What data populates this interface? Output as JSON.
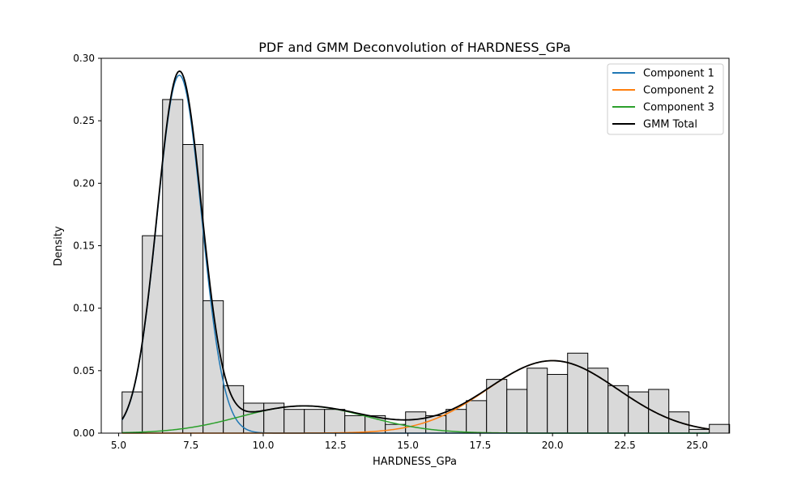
{
  "chart_data": {
    "type": "bar",
    "title": "PDF and GMM Deconvolution of HARDNESS_GPa",
    "xlabel": "HARDNESS_GPa",
    "ylabel": "Density",
    "xlim": [
      4.4,
      26.1
    ],
    "ylim": [
      0,
      0.3
    ],
    "xticks": [
      "5.0",
      "7.5",
      "10.0",
      "12.5",
      "15.0",
      "17.5",
      "20.0",
      "22.5",
      "25.0"
    ],
    "yticks": [
      "0.00",
      "0.05",
      "0.10",
      "0.15",
      "0.20",
      "0.25",
      "0.30"
    ],
    "histogram": {
      "color": "#d9d9d9",
      "edgecolor": "#000000",
      "bins": [
        {
          "x0": 5.12,
          "x1": 5.82,
          "density": 0.033
        },
        {
          "x0": 5.82,
          "x1": 6.52,
          "density": 0.158
        },
        {
          "x0": 6.52,
          "x1": 7.22,
          "density": 0.267
        },
        {
          "x0": 7.22,
          "x1": 7.92,
          "density": 0.231
        },
        {
          "x0": 7.92,
          "x1": 8.62,
          "density": 0.106
        },
        {
          "x0": 8.62,
          "x1": 9.32,
          "density": 0.038
        },
        {
          "x0": 9.32,
          "x1": 10.02,
          "density": 0.024
        },
        {
          "x0": 10.02,
          "x1": 10.72,
          "density": 0.024
        },
        {
          "x0": 10.72,
          "x1": 11.42,
          "density": 0.019
        },
        {
          "x0": 11.42,
          "x1": 12.12,
          "density": 0.019
        },
        {
          "x0": 12.12,
          "x1": 12.82,
          "density": 0.019
        },
        {
          "x0": 12.82,
          "x1": 13.52,
          "density": 0.014
        },
        {
          "x0": 13.52,
          "x1": 14.22,
          "density": 0.014
        },
        {
          "x0": 14.22,
          "x1": 14.92,
          "density": 0.007
        },
        {
          "x0": 14.92,
          "x1": 15.62,
          "density": 0.017
        },
        {
          "x0": 15.62,
          "x1": 16.32,
          "density": 0.014
        },
        {
          "x0": 16.32,
          "x1": 17.02,
          "density": 0.019
        },
        {
          "x0": 17.02,
          "x1": 17.72,
          "density": 0.026
        },
        {
          "x0": 17.72,
          "x1": 18.42,
          "density": 0.043
        },
        {
          "x0": 18.42,
          "x1": 19.12,
          "density": 0.035
        },
        {
          "x0": 19.12,
          "x1": 19.82,
          "density": 0.052
        },
        {
          "x0": 19.82,
          "x1": 20.52,
          "density": 0.047
        },
        {
          "x0": 20.52,
          "x1": 21.22,
          "density": 0.064
        },
        {
          "x0": 21.22,
          "x1": 21.92,
          "density": 0.052
        },
        {
          "x0": 21.92,
          "x1": 22.62,
          "density": 0.038
        },
        {
          "x0": 22.62,
          "x1": 23.32,
          "density": 0.033
        },
        {
          "x0": 23.32,
          "x1": 24.02,
          "density": 0.035
        },
        {
          "x0": 24.02,
          "x1": 24.72,
          "density": 0.017
        },
        {
          "x0": 24.72,
          "x1": 25.42,
          "density": 0.003
        },
        {
          "x0": 25.42,
          "x1": 26.12,
          "density": 0.007
        }
      ]
    },
    "components": [
      {
        "name": "Component 1",
        "color": "#1f77b4",
        "weight": 0.553,
        "mean": 7.1,
        "sd": 0.77
      },
      {
        "name": "Component 2",
        "color": "#ff7f0e",
        "weight": 0.327,
        "mean": 20.0,
        "sd": 2.25
      },
      {
        "name": "Component 3",
        "color": "#2ca02c",
        "weight": 0.12,
        "mean": 11.4,
        "sd": 2.2
      }
    ],
    "total": {
      "name": "GMM Total",
      "color": "#000000"
    },
    "curve_x_range": [
      5.12,
      25.42
    ],
    "legend": {
      "placement": "top-right"
    },
    "grid": false
  }
}
